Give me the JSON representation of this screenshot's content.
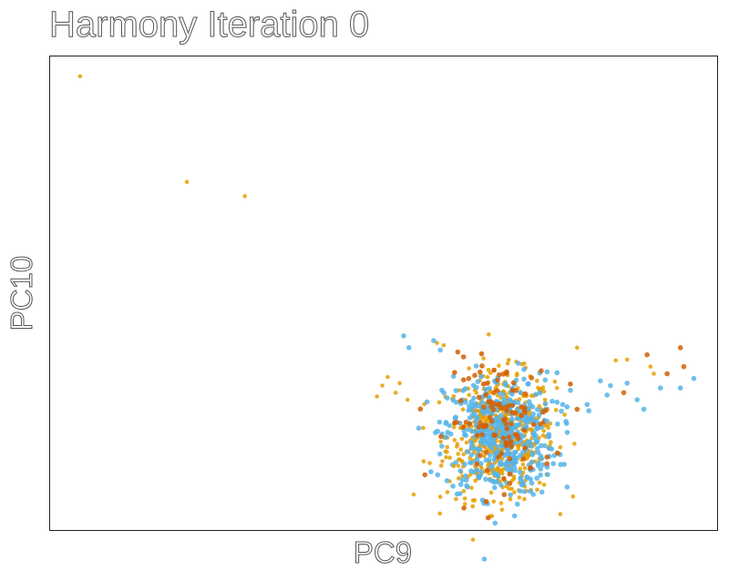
{
  "chart_data": {
    "type": "scatter",
    "title": "Harmony Iteration 0",
    "xlabel": "PC9",
    "ylabel": "PC10",
    "xlim": [
      0,
      100
    ],
    "ylim": [
      0,
      100
    ],
    "grid": false,
    "legend": "none",
    "series": [
      {
        "color": "#E69F00",
        "points": [
          [
            4.5,
            95.8
          ],
          [
            20.5,
            73.5
          ],
          [
            29.2,
            70.5
          ],
          [
            49.8,
            30.5
          ],
          [
            50.6,
            32.3
          ],
          [
            52.4,
            31.0
          ],
          [
            49.0,
            28.2
          ],
          [
            51.8,
            29.0
          ],
          [
            58.0,
            39.5
          ],
          [
            59.0,
            39.0
          ],
          [
            79.0,
            38.5
          ],
          [
            84.8,
            35.8
          ],
          [
            86.5,
            36.0
          ],
          [
            90.0,
            34.5
          ],
          [
            90.5,
            33.0
          ],
          [
            62.0,
            16.0
          ],
          [
            60.5,
            13.5
          ],
          [
            59.5,
            16.5
          ],
          [
            56.0,
            14.5
          ],
          [
            54.5,
            7.5
          ],
          [
            58.5,
            7.0
          ],
          [
            62.2,
            5.5
          ],
          [
            66.5,
            6.0
          ],
          [
            73.0,
            8.5
          ],
          [
            69.0,
            6.5
          ],
          [
            75.0,
            22.5
          ],
          [
            74.2,
            27.5
          ],
          [
            76.0,
            30.0
          ],
          [
            73.0,
            31.5
          ],
          [
            70.0,
            33.0
          ]
        ]
      },
      {
        "color": "#56B4E9",
        "points": [
          [
            53.0,
            41.0
          ],
          [
            53.8,
            38.5
          ],
          [
            57.5,
            40.0
          ],
          [
            58.5,
            38.0
          ],
          [
            76.0,
            27.0
          ],
          [
            78.0,
            29.5
          ],
          [
            82.5,
            31.5
          ],
          [
            84.0,
            30.5
          ],
          [
            86.5,
            31.0
          ],
          [
            88.0,
            27.5
          ],
          [
            89.0,
            25.5
          ],
          [
            91.5,
            30.0
          ],
          [
            94.5,
            30.0
          ],
          [
            96.5,
            32.0
          ],
          [
            83.5,
            28.5
          ],
          [
            80.5,
            26.5
          ],
          [
            77.5,
            26.0
          ],
          [
            74.5,
            23.0
          ],
          [
            72.5,
            20.5
          ],
          [
            69.0,
            13.0
          ],
          [
            64.5,
            11.5
          ],
          [
            66.0,
            10.5
          ],
          [
            70.5,
            11.0
          ],
          [
            61.5,
            12.5
          ]
        ]
      },
      {
        "color": "#D55E00",
        "points": [
          [
            94.5,
            38.5
          ],
          [
            95.0,
            34.5
          ],
          [
            89.5,
            37.0
          ],
          [
            92.5,
            33.0
          ],
          [
            86.0,
            29.0
          ],
          [
            79.0,
            25.5
          ],
          [
            74.5,
            14.0
          ],
          [
            71.0,
            15.0
          ]
        ]
      }
    ],
    "cluster": {
      "center": [
        67.5,
        20.0
      ],
      "spread": [
        4.0,
        6.5
      ],
      "count_each": [
        520,
        440,
        110
      ]
    }
  }
}
